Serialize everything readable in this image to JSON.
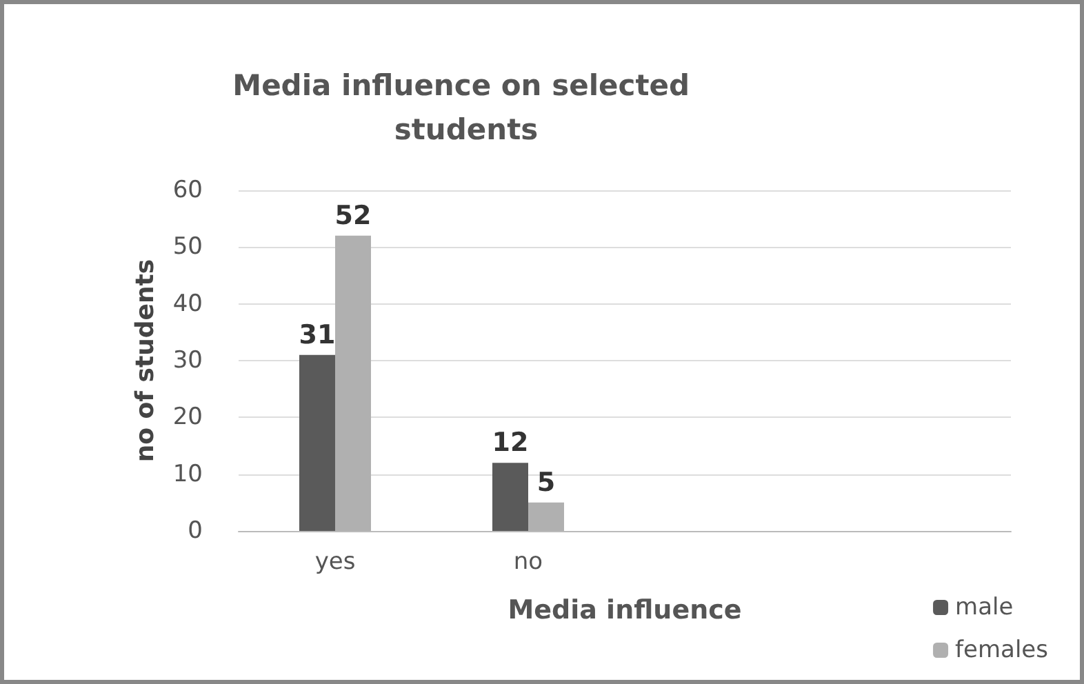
{
  "chart_data": {
    "type": "bar",
    "title": "Media influence on selected students",
    "xlabel": "Media influence",
    "ylabel": "no of students",
    "categories": [
      "yes",
      "no",
      null,
      null
    ],
    "series": [
      {
        "name": "male",
        "color": "#5a5a5a",
        "values": [
          31,
          12,
          null,
          null
        ]
      },
      {
        "name": "females",
        "color": "#b0b0b0",
        "values": [
          52,
          5,
          null,
          null
        ]
      }
    ],
    "ylim": [
      0,
      60
    ],
    "yticks": [
      0,
      10,
      20,
      30,
      40,
      50,
      60
    ],
    "grid": "y",
    "legend": "bottom right",
    "data_labels": true
  }
}
